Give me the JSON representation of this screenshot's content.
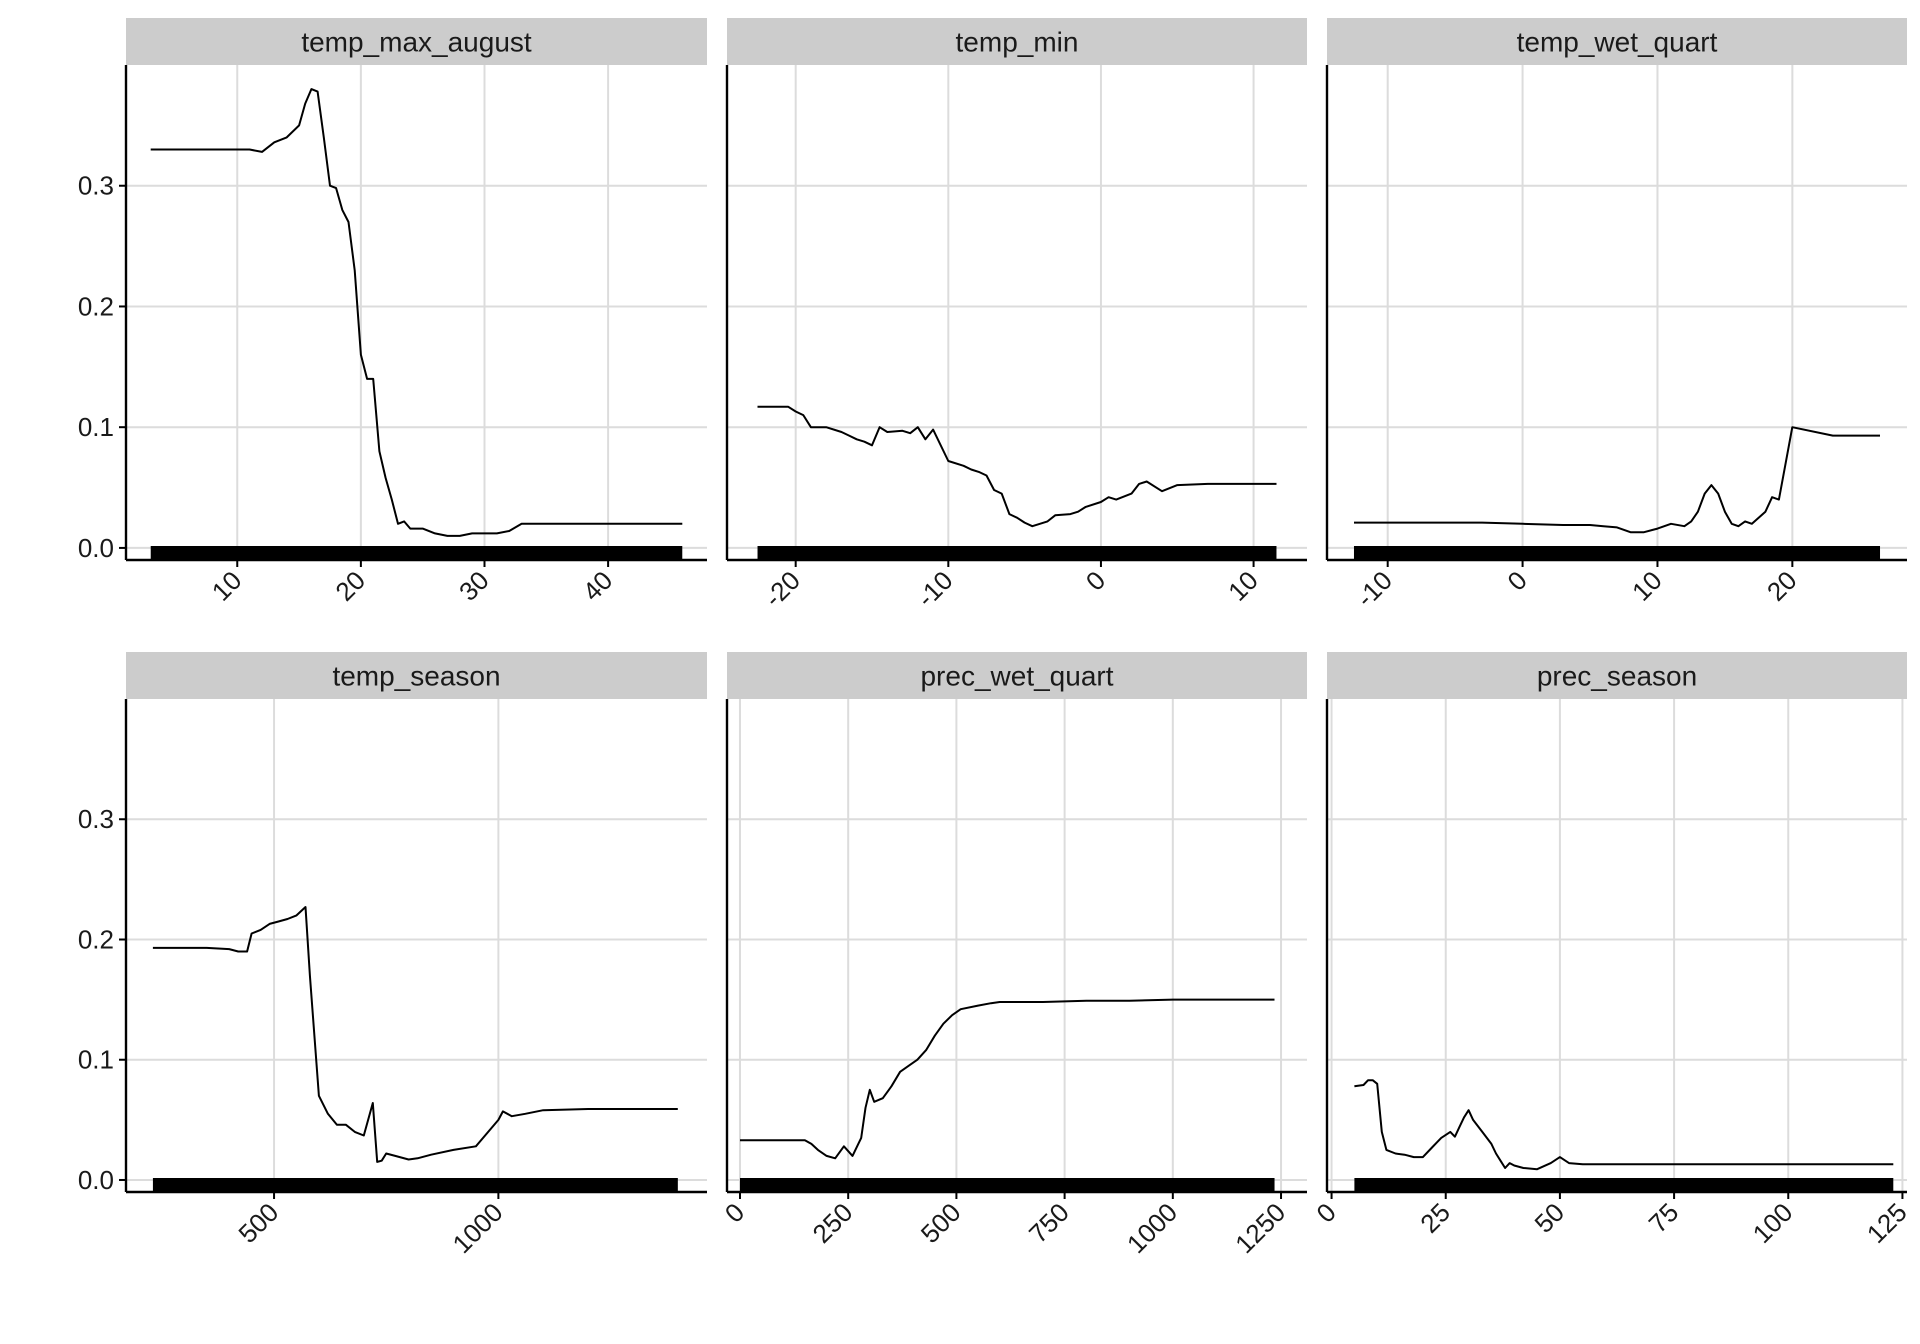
{
  "chart_data": {
    "type": "line",
    "layout": "facet_wrap",
    "ylim": [
      -0.01,
      0.4
    ],
    "yticks": [
      0.0,
      0.1,
      0.2,
      0.3
    ],
    "ytick_labels": [
      "0.0",
      "0.1",
      "0.2",
      "0.3"
    ],
    "grid": true,
    "colors": {
      "line": "#000000",
      "strip": "#cccccc",
      "grid": "#dcdcdc"
    },
    "panels": [
      {
        "title": "temp_max_august",
        "xlim": [
          1,
          48
        ],
        "xticks": [
          10,
          20,
          30,
          40
        ],
        "xtick_labels": [
          "10",
          "20",
          "30",
          "40"
        ],
        "rug_range": [
          3,
          46
        ],
        "x": [
          3,
          8,
          11,
          12,
          13,
          14,
          15,
          15.5,
          16,
          16.5,
          17,
          17.5,
          18,
          18.5,
          19,
          19.5,
          20,
          20.5,
          21,
          21.5,
          22,
          22.5,
          23,
          23.5,
          24,
          25,
          26,
          27,
          28,
          29,
          30,
          31,
          32,
          33,
          35,
          40,
          46
        ],
        "y": [
          0.33,
          0.33,
          0.33,
          0.328,
          0.336,
          0.34,
          0.35,
          0.368,
          0.38,
          0.378,
          0.34,
          0.3,
          0.298,
          0.28,
          0.27,
          0.23,
          0.16,
          0.14,
          0.14,
          0.08,
          0.058,
          0.04,
          0.02,
          0.022,
          0.016,
          0.016,
          0.012,
          0.01,
          0.01,
          0.012,
          0.012,
          0.012,
          0.014,
          0.02,
          0.02,
          0.02,
          0.02
        ]
      },
      {
        "title": "temp_min",
        "xlim": [
          -24.5,
          13.5
        ],
        "xticks": [
          -20,
          -10,
          0,
          10
        ],
        "xtick_labels": [
          "-20",
          "-10",
          "0",
          "10"
        ],
        "rug_range": [
          -22.5,
          11.5
        ],
        "x": [
          -22.5,
          -20.5,
          -20,
          -19.5,
          -19,
          -18,
          -17,
          -16.5,
          -16,
          -15.5,
          -15,
          -14.5,
          -14,
          -13,
          -12.5,
          -12,
          -11.5,
          -11,
          -10,
          -9,
          -8.5,
          -8,
          -7.5,
          -7,
          -6.5,
          -6,
          -5.5,
          -5,
          -4.5,
          -4,
          -3.5,
          -3,
          -2,
          -1.5,
          -1,
          0,
          0.5,
          1,
          2,
          2.5,
          3,
          4,
          5,
          7,
          9,
          11.5
        ],
        "y": [
          0.117,
          0.117,
          0.113,
          0.11,
          0.1,
          0.1,
          0.096,
          0.093,
          0.09,
          0.088,
          0.085,
          0.1,
          0.096,
          0.097,
          0.095,
          0.1,
          0.09,
          0.098,
          0.072,
          0.068,
          0.065,
          0.063,
          0.06,
          0.048,
          0.045,
          0.028,
          0.025,
          0.021,
          0.018,
          0.02,
          0.022,
          0.027,
          0.028,
          0.03,
          0.034,
          0.038,
          0.042,
          0.04,
          0.045,
          0.053,
          0.055,
          0.047,
          0.052,
          0.053,
          0.053,
          0.053
        ]
      },
      {
        "title": "temp_wet_quart",
        "xlim": [
          -14.5,
          28.5
        ],
        "xticks": [
          -10,
          0,
          10,
          20
        ],
        "xtick_labels": [
          "-10",
          "0",
          "10",
          "20"
        ],
        "rug_range": [
          -12.5,
          26.5
        ],
        "x": [
          -12.5,
          -6,
          -3,
          0,
          3,
          5,
          6,
          7,
          8,
          9,
          10,
          11,
          12,
          12.5,
          13,
          13.5,
          14,
          14.5,
          15,
          15.5,
          16,
          16.5,
          17,
          18,
          18.5,
          19,
          19.5,
          20,
          23,
          26.5
        ],
        "y": [
          0.021,
          0.021,
          0.021,
          0.02,
          0.019,
          0.019,
          0.018,
          0.017,
          0.013,
          0.013,
          0.016,
          0.02,
          0.018,
          0.022,
          0.03,
          0.045,
          0.052,
          0.045,
          0.03,
          0.02,
          0.018,
          0.022,
          0.02,
          0.03,
          0.042,
          0.04,
          0.07,
          0.1,
          0.093,
          0.093
        ]
      },
      {
        "title": "temp_season",
        "xlim": [
          170,
          1465
        ],
        "xticks": [
          500,
          1000
        ],
        "xtick_labels": [
          "500",
          "1000"
        ],
        "rug_range": [
          230,
          1400
        ],
        "x": [
          230,
          300,
          350,
          400,
          420,
          440,
          450,
          470,
          490,
          510,
          530,
          550,
          570,
          580,
          600,
          620,
          640,
          660,
          680,
          700,
          720,
          730,
          740,
          750,
          770,
          800,
          820,
          850,
          900,
          950,
          1000,
          1010,
          1030,
          1060,
          1100,
          1200,
          1300,
          1400
        ],
        "y": [
          0.193,
          0.193,
          0.193,
          0.192,
          0.19,
          0.19,
          0.205,
          0.208,
          0.213,
          0.215,
          0.217,
          0.22,
          0.227,
          0.17,
          0.07,
          0.055,
          0.046,
          0.046,
          0.04,
          0.037,
          0.064,
          0.015,
          0.016,
          0.022,
          0.02,
          0.017,
          0.018,
          0.021,
          0.025,
          0.028,
          0.05,
          0.057,
          0.053,
          0.055,
          0.058,
          0.059,
          0.059,
          0.059
        ]
      },
      {
        "title": "prec_wet_quart",
        "xlim": [
          -30,
          1310
        ],
        "xticks": [
          0,
          250,
          500,
          750,
          1000,
          1250
        ],
        "xtick_labels": [
          "0",
          "250",
          "500",
          "750",
          "1000",
          "1250"
        ],
        "rug_range": [
          0,
          1235
        ],
        "x": [
          0,
          100,
          150,
          165,
          180,
          200,
          220,
          240,
          260,
          280,
          290,
          300,
          310,
          330,
          350,
          370,
          390,
          410,
          430,
          450,
          470,
          490,
          510,
          550,
          580,
          600,
          650,
          700,
          800,
          900,
          1000,
          1100,
          1235
        ],
        "y": [
          0.033,
          0.033,
          0.033,
          0.03,
          0.025,
          0.02,
          0.018,
          0.028,
          0.02,
          0.035,
          0.06,
          0.075,
          0.065,
          0.068,
          0.078,
          0.09,
          0.095,
          0.1,
          0.108,
          0.12,
          0.13,
          0.137,
          0.142,
          0.145,
          0.147,
          0.148,
          0.148,
          0.148,
          0.149,
          0.149,
          0.15,
          0.15,
          0.15
        ]
      },
      {
        "title": "prec_season",
        "xlim": [
          -1,
          126
        ],
        "xticks": [
          0,
          25,
          50,
          75,
          100,
          125
        ],
        "xtick_labels": [
          "0",
          "25",
          "50",
          "75",
          "100",
          "125"
        ],
        "rug_range": [
          5,
          123
        ],
        "x": [
          5,
          7,
          8,
          9,
          10,
          11,
          12,
          14,
          16,
          18,
          20,
          22,
          24,
          26,
          27,
          28,
          29,
          30,
          31,
          32,
          33,
          35,
          36,
          37,
          38,
          39,
          40,
          42,
          45,
          48,
          50,
          52,
          55,
          60,
          80,
          100,
          123
        ],
        "y": [
          0.078,
          0.079,
          0.083,
          0.083,
          0.08,
          0.04,
          0.025,
          0.022,
          0.021,
          0.019,
          0.019,
          0.027,
          0.035,
          0.04,
          0.036,
          0.044,
          0.052,
          0.058,
          0.05,
          0.045,
          0.04,
          0.03,
          0.022,
          0.016,
          0.01,
          0.014,
          0.012,
          0.01,
          0.009,
          0.014,
          0.019,
          0.014,
          0.013,
          0.013,
          0.013,
          0.013,
          0.013
        ]
      }
    ]
  }
}
